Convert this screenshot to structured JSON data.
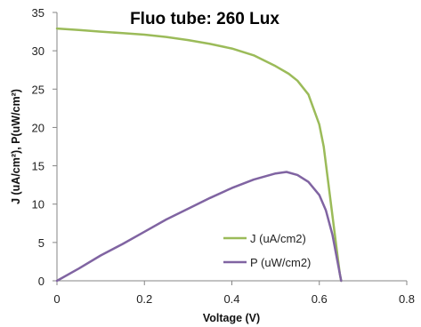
{
  "chart_data": {
    "type": "line",
    "title": "Fluo tube: 260 Lux",
    "xlabel": "Voltage (V)",
    "ylabel": "J (uA/cm²), P(uW/cm²)",
    "xlim": [
      0,
      0.8
    ],
    "ylim": [
      0,
      35
    ],
    "xticks": [
      "0",
      "0.2",
      "0.4",
      "0.6",
      "0.8"
    ],
    "yticks": [
      "0",
      "5",
      "10",
      "15",
      "20",
      "25",
      "30",
      "35"
    ],
    "grid": false,
    "legend": "bottom-right",
    "series": [
      {
        "name": "J (uA/cm2)",
        "color": "#9bbb59",
        "points": [
          [
            0,
            32.9
          ],
          [
            0.05,
            32.7
          ],
          [
            0.1,
            32.5
          ],
          [
            0.15,
            32.3
          ],
          [
            0.2,
            32.1
          ],
          [
            0.25,
            31.8
          ],
          [
            0.3,
            31.4
          ],
          [
            0.35,
            30.9
          ],
          [
            0.4,
            30.3
          ],
          [
            0.45,
            29.4
          ],
          [
            0.5,
            28.0
          ],
          [
            0.53,
            27.0
          ],
          [
            0.55,
            26.1
          ],
          [
            0.575,
            24.3
          ],
          [
            0.6,
            20.4
          ],
          [
            0.61,
            17.5
          ],
          [
            0.62,
            13.0
          ],
          [
            0.63,
            8.5
          ],
          [
            0.64,
            4.0
          ],
          [
            0.647,
            0.9
          ],
          [
            0.65,
            0
          ]
        ]
      },
      {
        "name": "P (uW/cm2)",
        "color": "#8064a2",
        "points": [
          [
            0,
            0
          ],
          [
            0.05,
            1.6
          ],
          [
            0.1,
            3.3
          ],
          [
            0.15,
            4.8
          ],
          [
            0.2,
            6.4
          ],
          [
            0.25,
            8.0
          ],
          [
            0.3,
            9.4
          ],
          [
            0.35,
            10.8
          ],
          [
            0.4,
            12.1
          ],
          [
            0.45,
            13.2
          ],
          [
            0.5,
            14.0
          ],
          [
            0.525,
            14.2
          ],
          [
            0.55,
            13.8
          ],
          [
            0.575,
            12.9
          ],
          [
            0.6,
            11.2
          ],
          [
            0.615,
            9.2
          ],
          [
            0.63,
            6.0
          ],
          [
            0.64,
            3.0
          ],
          [
            0.65,
            0
          ]
        ]
      }
    ]
  }
}
